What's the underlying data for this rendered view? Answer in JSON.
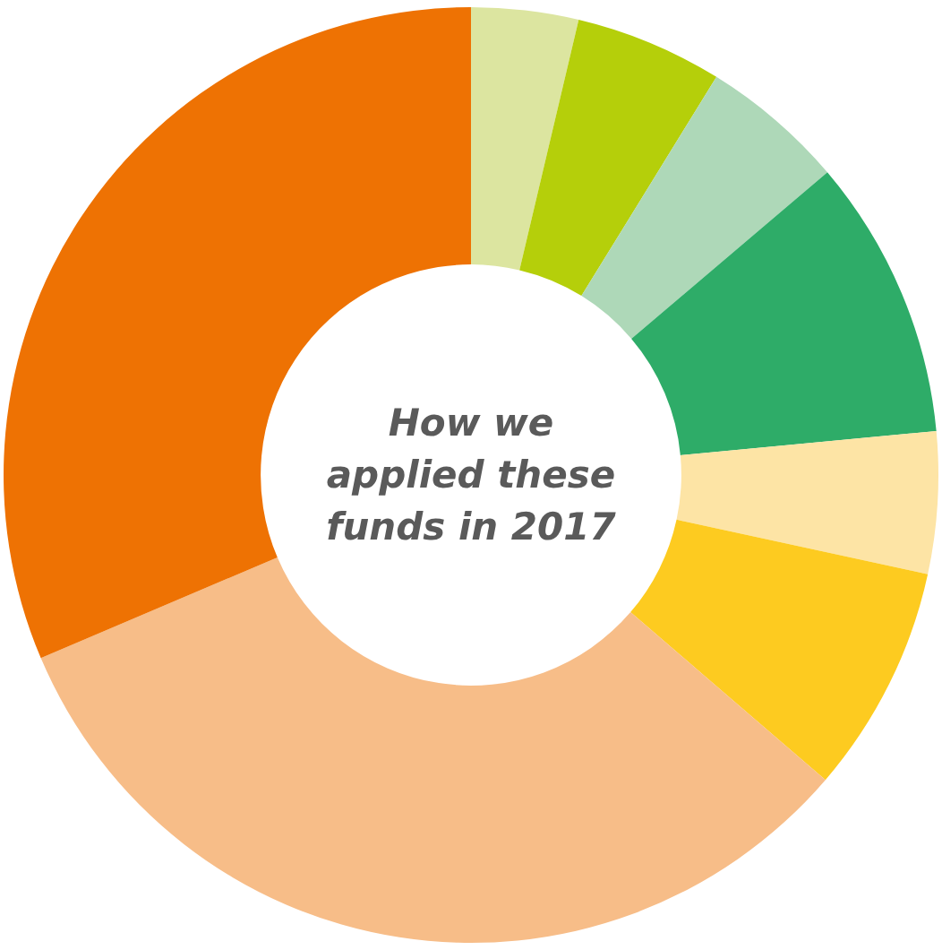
{
  "chart_data": {
    "type": "donut",
    "title": "How we applied these funds in 2017",
    "categories": [
      null,
      null,
      null,
      null,
      null,
      null,
      null,
      null
    ],
    "values": [
      3.7,
      5.1,
      5.0,
      9.7,
      4.9,
      7.9,
      32.3,
      31.4
    ],
    "colors": [
      "#dce5a0",
      "#b5cf0a",
      "#aed8b8",
      "#2eac68",
      "#fde4a5",
      "#fdcb20",
      "#f7bd88",
      "#ee7203"
    ]
  }
}
